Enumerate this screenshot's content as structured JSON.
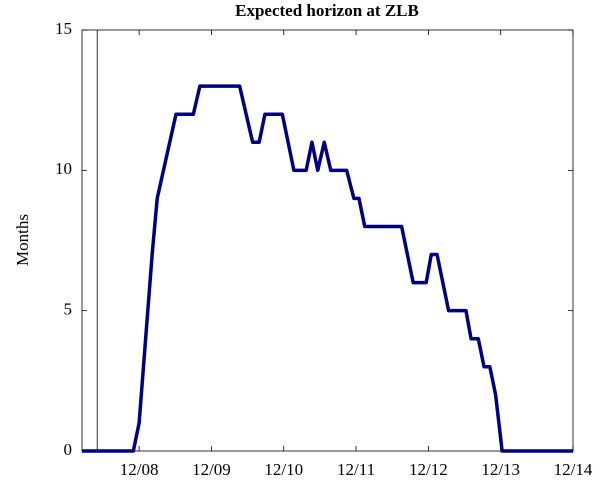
{
  "chart_data": {
    "type": "line",
    "title": "Expected horizon at ZLB",
    "ylabel": "Months",
    "x": [
      2008.13,
      2008.84,
      2008.92,
      2009.1,
      2009.17,
      2009.43,
      2009.67,
      2009.76,
      2010.31,
      2010.49,
      2010.58,
      2010.66,
      2010.9,
      2011.06,
      2011.23,
      2011.31,
      2011.39,
      2011.48,
      2011.57,
      2011.79,
      2011.89,
      2011.96,
      2012.04,
      2012.55,
      2012.71,
      2012.89,
      2012.96,
      2013.04,
      2013.2,
      2013.44,
      2013.51,
      2013.61,
      2013.69,
      2013.77,
      2013.85,
      2013.94,
      2014.92
    ],
    "values": [
      0,
      0,
      1,
      7,
      9,
      12,
      12,
      13,
      13,
      11,
      11,
      12,
      12,
      10,
      10,
      11,
      10,
      11,
      10,
      10,
      9,
      9,
      8,
      8,
      6,
      6,
      7,
      7,
      5,
      5,
      4,
      4,
      3,
      3,
      2,
      0,
      0
    ],
    "color": "#000080",
    "vline": 2008.34,
    "xlim": [
      2008.13,
      2014.92
    ],
    "xticks": [
      {
        "value": 2008.92,
        "label": "12/08"
      },
      {
        "value": 2009.92,
        "label": "12/09"
      },
      {
        "value": 2010.92,
        "label": "12/10"
      },
      {
        "value": 2011.92,
        "label": "12/11"
      },
      {
        "value": 2012.92,
        "label": "12/12"
      },
      {
        "value": 2013.92,
        "label": "12/13"
      },
      {
        "value": 2014.92,
        "label": "12/14"
      }
    ],
    "ylim": [
      0,
      15
    ],
    "yticks": [
      0,
      5,
      10,
      15
    ]
  }
}
